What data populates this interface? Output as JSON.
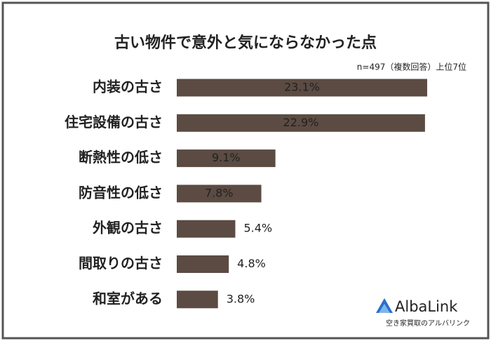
{
  "chart_data": {
    "type": "bar",
    "orientation": "horizontal",
    "title": "古い物件で意外と気にならなかった点",
    "subtitle": "n=497（複数回答）上位7位",
    "categories": [
      "内装の古さ",
      "住宅設備の古さ",
      "断熱性の低さ",
      "防音性の低さ",
      "外観の古さ",
      "間取りの古さ",
      "和室がある"
    ],
    "values": [
      23.1,
      22.9,
      9.1,
      7.8,
      5.4,
      4.8,
      3.8
    ],
    "value_labels": [
      "23.1%",
      "22.9%",
      "9.1%",
      "7.8%",
      "5.4%",
      "4.8%",
      "3.8%"
    ],
    "color": "#5b4b43"
  },
  "logo": {
    "name": "AlbaLink",
    "tagline": "空き家買取のアルバリンク"
  }
}
